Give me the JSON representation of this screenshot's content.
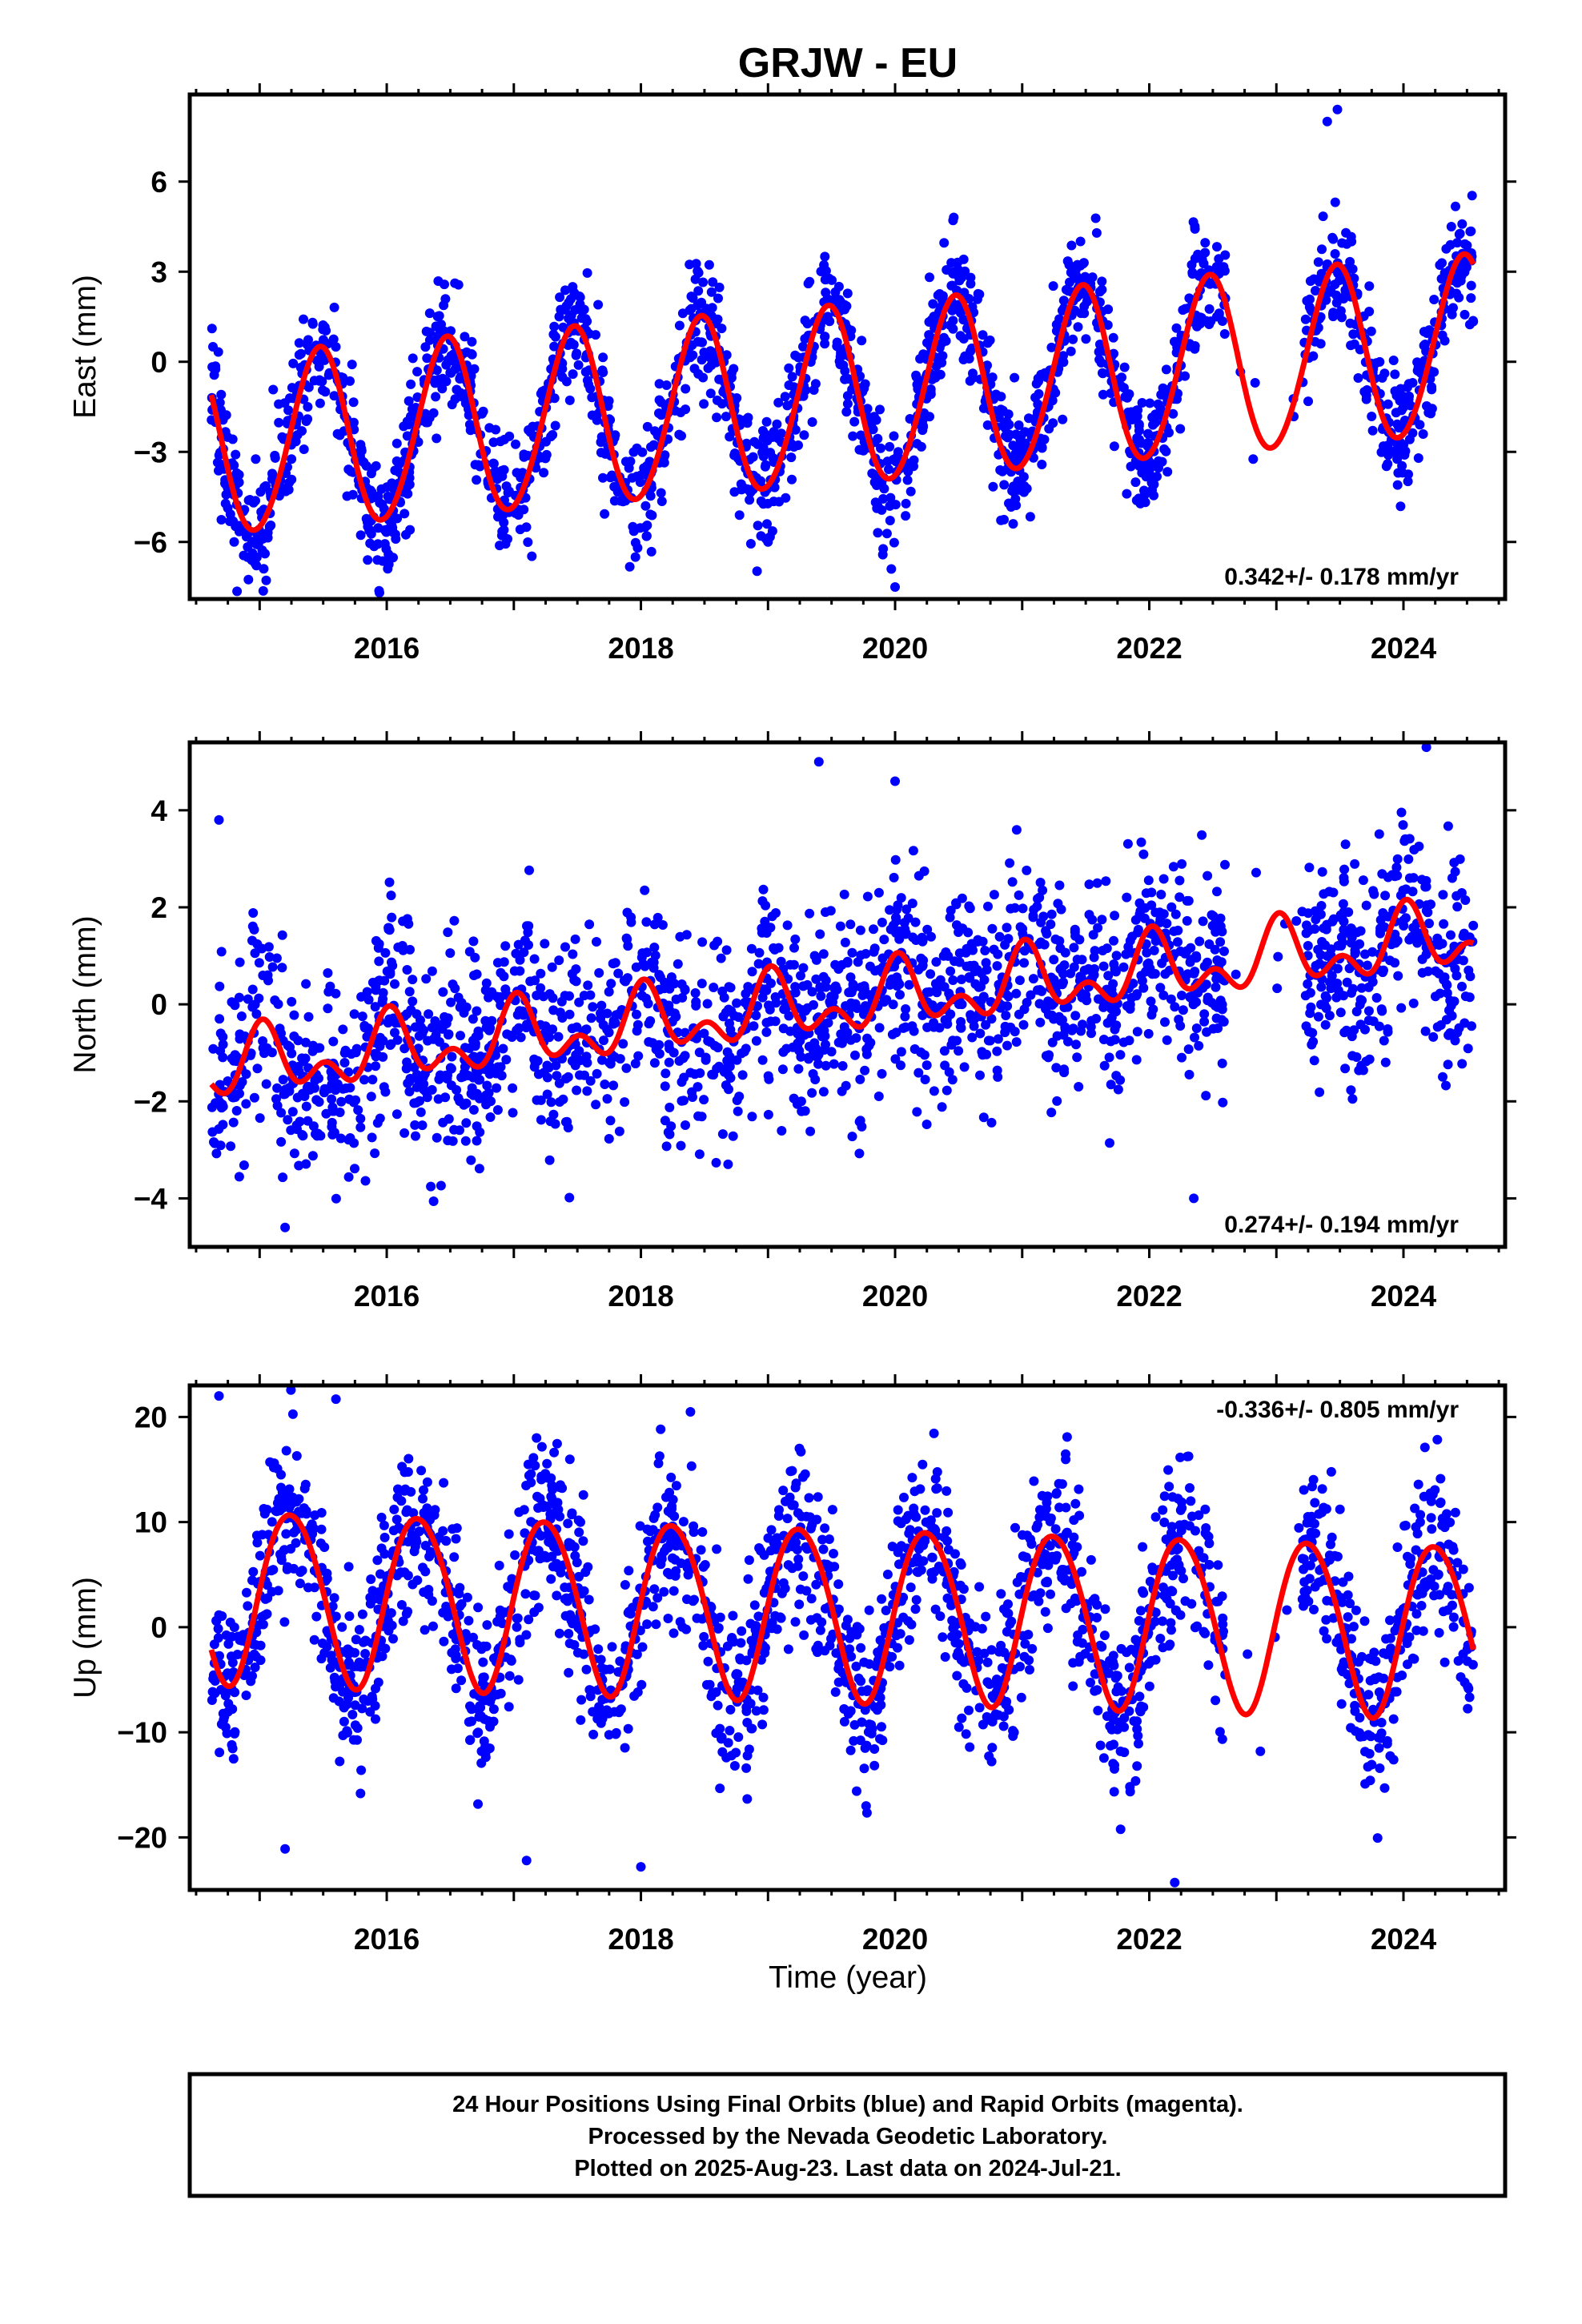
{
  "title": "GRJW - EU",
  "xlabel": "Time (year)",
  "footer": [
    "24 Hour Positions Using Final Orbits (blue) and Rapid Orbits (magenta).",
    "Processed by the Nevada Geodetic Laboratory.",
    "Plotted on 2025-Aug-23. Last data on 2024-Jul-21."
  ],
  "colors": {
    "observations": "#0000ff",
    "model": "#ff0000",
    "frame": "#000000"
  },
  "chart_data": [
    {
      "type": "scatter",
      "component": "east",
      "ylabel": "East (mm)",
      "xlim": [
        2014.45,
        2024.8
      ],
      "ylim": [
        -7.9,
        8.9
      ],
      "yticks": [
        -6,
        -3,
        0,
        3,
        6
      ],
      "xticks": [
        2016,
        2018,
        2020,
        2022,
        2024
      ],
      "rate_label": "0.342+/- 0.178 mm/yr",
      "rate_position": "bottom-right",
      "grid": false,
      "data_span": [
        2014.62,
        2024.55
      ],
      "gap": [
        2022.6,
        2023.2
      ],
      "model": {
        "name": "red curve",
        "offset": -1.2,
        "trend": 0.342,
        "ref_epoch": 2019.5,
        "annual_cos": -2.9,
        "annual_sin": 0.6,
        "semiannual_cos": 0.15,
        "semiannual_sin": 0.05
      },
      "scatter_sd": 1.05,
      "point_count": 2200,
      "outliers": [
        [
          2023.48,
          8.4
        ],
        [
          2023.4,
          8.0
        ],
        [
          2020.0,
          -7.5
        ],
        [
          2019.97,
          -6.9
        ],
        [
          2015.85,
          -6.6
        ],
        [
          2019.0,
          -6.0
        ]
      ]
    },
    {
      "type": "scatter",
      "component": "north",
      "ylabel": "North (mm)",
      "xlim": [
        2014.45,
        2024.8
      ],
      "ylim": [
        -5.0,
        5.4
      ],
      "yticks": [
        -4,
        -2,
        0,
        2,
        4
      ],
      "xticks": [
        2016,
        2018,
        2020,
        2022,
        2024
      ],
      "rate_label": "0.274+/- 0.194 mm/yr",
      "rate_position": "bottom-right",
      "grid": false,
      "data_span": [
        2014.62,
        2024.55
      ],
      "gap": [
        2022.6,
        2023.2
      ],
      "model": {
        "name": "red curve",
        "offset": 0.0,
        "trend": 0.274,
        "ref_epoch": 2019.5,
        "annual_cos": 0.5,
        "annual_sin": 0.1,
        "semiannual_cos": 0.4,
        "semiannual_sin": 0.1
      },
      "scatter_sd": 1.0,
      "point_count": 2200,
      "outliers": [
        [
          2019.4,
          5.0
        ],
        [
          2024.18,
          5.3
        ],
        [
          2020.0,
          4.6
        ],
        [
          2014.68,
          3.8
        ],
        [
          2015.2,
          -4.6
        ],
        [
          2022.35,
          -4.0
        ]
      ]
    },
    {
      "type": "scatter",
      "component": "up",
      "ylabel": "Up (mm)",
      "xlim": [
        2014.45,
        2024.8
      ],
      "ylim": [
        -25.0,
        23.0
      ],
      "yticks": [
        -20,
        -10,
        0,
        10,
        20
      ],
      "xticks": [
        2016,
        2018,
        2020,
        2022,
        2024
      ],
      "rate_label": "-0.336+/- 0.805 mm/yr",
      "rate_position": "top-right",
      "grid": false,
      "data_span": [
        2014.62,
        2024.55
      ],
      "gap": [
        2022.6,
        2023.2
      ],
      "model": {
        "name": "red curve",
        "offset": 1.5,
        "trend": -0.336,
        "ref_epoch": 2019.5,
        "annual_cos": 0.0,
        "annual_sin": 8.2,
        "semiannual_cos": 0.5,
        "semiannual_sin": 0.3
      },
      "scatter_sd": 4.0,
      "point_count": 2200,
      "outliers": [
        [
          2014.68,
          22.0
        ],
        [
          2015.6,
          21.7
        ],
        [
          2022.2,
          -24.3
        ],
        [
          2018.0,
          -22.8
        ],
        [
          2017.1,
          -22.2
        ],
        [
          2015.2,
          -21.1
        ]
      ]
    }
  ]
}
